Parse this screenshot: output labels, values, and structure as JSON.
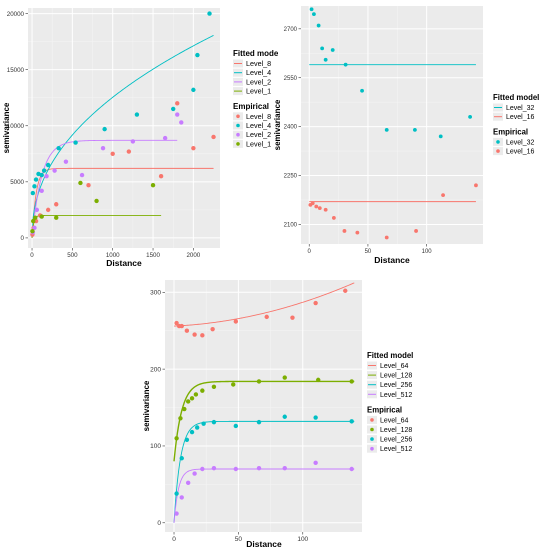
{
  "chart_data": [
    {
      "type": "scatter",
      "xlabel": "Distance",
      "ylabel": "semivariance",
      "xlim": [
        -50,
        2330
      ],
      "ylim": [
        -900,
        20500
      ],
      "xticks": [
        0,
        500,
        1000,
        1500,
        2000
      ],
      "yticks": [
        0,
        5000,
        10000,
        15000,
        20000
      ],
      "grid": true,
      "legend_position": "right",
      "fitted_title": "Fitted mode",
      "empirical_title": "Empirical",
      "fitted": [
        {
          "name": "Level_8",
          "color": "#f8766d",
          "curve": {
            "kind": "exp",
            "nugget": 0,
            "sill": 6200,
            "range": 50,
            "xmax": 2250
          }
        },
        {
          "name": "Level_4",
          "color": "#00bfc4",
          "curve": {
            "kind": "power",
            "nugget": 0,
            "scale": 560,
            "exponent": 0.45,
            "xmax": 2250
          }
        },
        {
          "name": "Level_2",
          "color": "#c77cff",
          "curve": {
            "kind": "exp",
            "nugget": 0,
            "sill": 8700,
            "range": 120,
            "xmax": 1800
          }
        },
        {
          "name": "Level_1",
          "color": "#7cae00",
          "curve": {
            "kind": "exp",
            "nugget": 0,
            "sill": 2000,
            "range": 20,
            "xmax": 1600
          }
        }
      ],
      "empirical": [
        {
          "name": "Level_8",
          "color": "#f8766d",
          "points": [
            [
              5,
              300
            ],
            [
              20,
              900
            ],
            [
              50,
              1500
            ],
            [
              100,
              2000
            ],
            [
              200,
              2500
            ],
            [
              300,
              3000
            ],
            [
              700,
              4700
            ],
            [
              1000,
              7500
            ],
            [
              1200,
              7700
            ],
            [
              1600,
              5500
            ],
            [
              1800,
              12000
            ],
            [
              2000,
              8000
            ],
            [
              2250,
              9000
            ]
          ]
        },
        {
          "name": "Level_4",
          "color": "#00bfc4",
          "points": [
            [
              10,
              4000
            ],
            [
              30,
              4600
            ],
            [
              50,
              5200
            ],
            [
              80,
              5700
            ],
            [
              120,
              5600
            ],
            [
              150,
              6000
            ],
            [
              200,
              6500
            ],
            [
              330,
              8000
            ],
            [
              540,
              8500
            ],
            [
              900,
              9700
            ],
            [
              1300,
              11000
            ],
            [
              1750,
              11500
            ],
            [
              2000,
              13200
            ],
            [
              2050,
              16300
            ],
            [
              2200,
              20000
            ]
          ]
        },
        {
          "name": "Level_2",
          "color": "#c77cff",
          "points": [
            [
              10,
              500
            ],
            [
              30,
              900
            ],
            [
              60,
              2500
            ],
            [
              120,
              4200
            ],
            [
              180,
              5500
            ],
            [
              280,
              6000
            ],
            [
              420,
              6800
            ],
            [
              620,
              5600
            ],
            [
              880,
              8000
            ],
            [
              1250,
              8600
            ],
            [
              1650,
              8900
            ],
            [
              1800,
              11000
            ],
            [
              1850,
              10300
            ]
          ]
        },
        {
          "name": "Level_1",
          "color": "#7cae00",
          "points": [
            [
              5,
              600
            ],
            [
              15,
              1500
            ],
            [
              40,
              1800
            ],
            [
              120,
              1900
            ],
            [
              300,
              1800
            ],
            [
              600,
              4900
            ],
            [
              800,
              3300
            ],
            [
              1500,
              4700
            ]
          ]
        }
      ]
    },
    {
      "type": "scatter",
      "xlabel": "Distance",
      "ylabel": "semivariance",
      "xlim": [
        -7,
        148
      ],
      "ylim": [
        2040,
        2770
      ],
      "xticks": [
        0,
        50,
        100
      ],
      "yticks": [
        2100,
        2250,
        2400,
        2550,
        2700
      ],
      "ytick_labels": [
        "2100",
        "2250",
        "2400",
        "2550",
        "2700"
      ],
      "grid": true,
      "legend_position": "right",
      "fitted_title": "Fitted model",
      "empirical_title": "Empirical",
      "fitted": [
        {
          "name": "Level_32",
          "color": "#00bfc4",
          "curve": {
            "kind": "flat",
            "value": 2590,
            "xmax": 142
          }
        },
        {
          "name": "Level_16",
          "color": "#f8766d",
          "curve": {
            "kind": "flat",
            "value": 2170,
            "xmax": 142
          }
        }
      ],
      "empirical": [
        {
          "name": "Level_32",
          "color": "#00bfc4",
          "points": [
            [
              2,
              2760
            ],
            [
              4,
              2745
            ],
            [
              8,
              2710
            ],
            [
              11,
              2640
            ],
            [
              14,
              2605
            ],
            [
              20,
              2635
            ],
            [
              31,
              2590
            ],
            [
              45,
              2510
            ],
            [
              66,
              2390
            ],
            [
              90,
              2390
            ],
            [
              112,
              2370
            ],
            [
              137,
              2430
            ]
          ]
        },
        {
          "name": "Level_16",
          "color": "#f8766d",
          "points": [
            [
              1,
              2160
            ],
            [
              3,
              2165
            ],
            [
              6,
              2155
            ],
            [
              9,
              2150
            ],
            [
              14,
              2145
            ],
            [
              21,
              2120
            ],
            [
              30,
              2080
            ],
            [
              41,
              2075
            ],
            [
              66,
              2060
            ],
            [
              91,
              2080
            ],
            [
              114,
              2190
            ],
            [
              142,
              2220
            ]
          ]
        }
      ]
    },
    {
      "type": "scatter",
      "xlabel": "Distance",
      "ylabel": "semivariance",
      "xlim": [
        -7,
        146
      ],
      "ylim": [
        -12,
        316
      ],
      "xticks": [
        0,
        50,
        100
      ],
      "yticks": [
        0,
        100,
        200,
        300
      ],
      "grid": true,
      "legend_position": "right",
      "fitted_title": "Fitted model",
      "empirical_title": "Empirical",
      "fitted": [
        {
          "name": "Level_64",
          "color": "#f8766d",
          "curve": {
            "kind": "quad",
            "a": 256,
            "b": 0.08,
            "c": 0.0023,
            "xmax": 140
          }
        },
        {
          "name": "Level_128",
          "color": "#7cae00",
          "curve": {
            "kind": "exp",
            "nugget": 80,
            "sill": 104,
            "range": 6,
            "xmax": 140
          }
        },
        {
          "name": "Level_256",
          "color": "#00bfc4",
          "curve": {
            "kind": "exp",
            "nugget": 0,
            "sill": 132,
            "range": 5,
            "xmax": 140
          }
        },
        {
          "name": "Level_512",
          "color": "#c77cff",
          "curve": {
            "kind": "exp",
            "nugget": 0,
            "sill": 70,
            "range": 3.5,
            "xmax": 140
          }
        }
      ],
      "empirical": [
        {
          "name": "Level_64",
          "color": "#f8766d",
          "points": [
            [
              2,
              260
            ],
            [
              4,
              256
            ],
            [
              6,
              256
            ],
            [
              10,
              250
            ],
            [
              16,
              245
            ],
            [
              22,
              244
            ],
            [
              30,
              252
            ],
            [
              48,
              262
            ],
            [
              72,
              268
            ],
            [
              92,
              267
            ],
            [
              110,
              286
            ],
            [
              133,
              302
            ]
          ]
        },
        {
          "name": "Level_128",
          "color": "#7cae00",
          "points": [
            [
              2,
              110
            ],
            [
              5,
              136
            ],
            [
              8,
              148
            ],
            [
              11,
              158
            ],
            [
              14,
              162
            ],
            [
              17,
              167
            ],
            [
              22,
              172
            ],
            [
              31,
              177
            ],
            [
              46,
              180
            ],
            [
              66,
              184
            ],
            [
              86,
              189
            ],
            [
              112,
              186
            ],
            [
              138,
              184
            ]
          ]
        },
        {
          "name": "Level_256",
          "color": "#00bfc4",
          "points": [
            [
              2,
              38
            ],
            [
              6,
              84
            ],
            [
              10,
              108
            ],
            [
              14,
              118
            ],
            [
              18,
              124
            ],
            [
              23,
              129
            ],
            [
              31,
              131
            ],
            [
              48,
              126
            ],
            [
              66,
              131
            ],
            [
              86,
              138
            ],
            [
              110,
              137
            ],
            [
              138,
              132
            ]
          ]
        },
        {
          "name": "Level_512",
          "color": "#c77cff",
          "points": [
            [
              2,
              12
            ],
            [
              6,
              33
            ],
            [
              11,
              52
            ],
            [
              16,
              64
            ],
            [
              22,
              70
            ],
            [
              31,
              71
            ],
            [
              48,
              70
            ],
            [
              66,
              71
            ],
            [
              86,
              71
            ],
            [
              110,
              78
            ],
            [
              138,
              70
            ]
          ]
        }
      ]
    }
  ]
}
